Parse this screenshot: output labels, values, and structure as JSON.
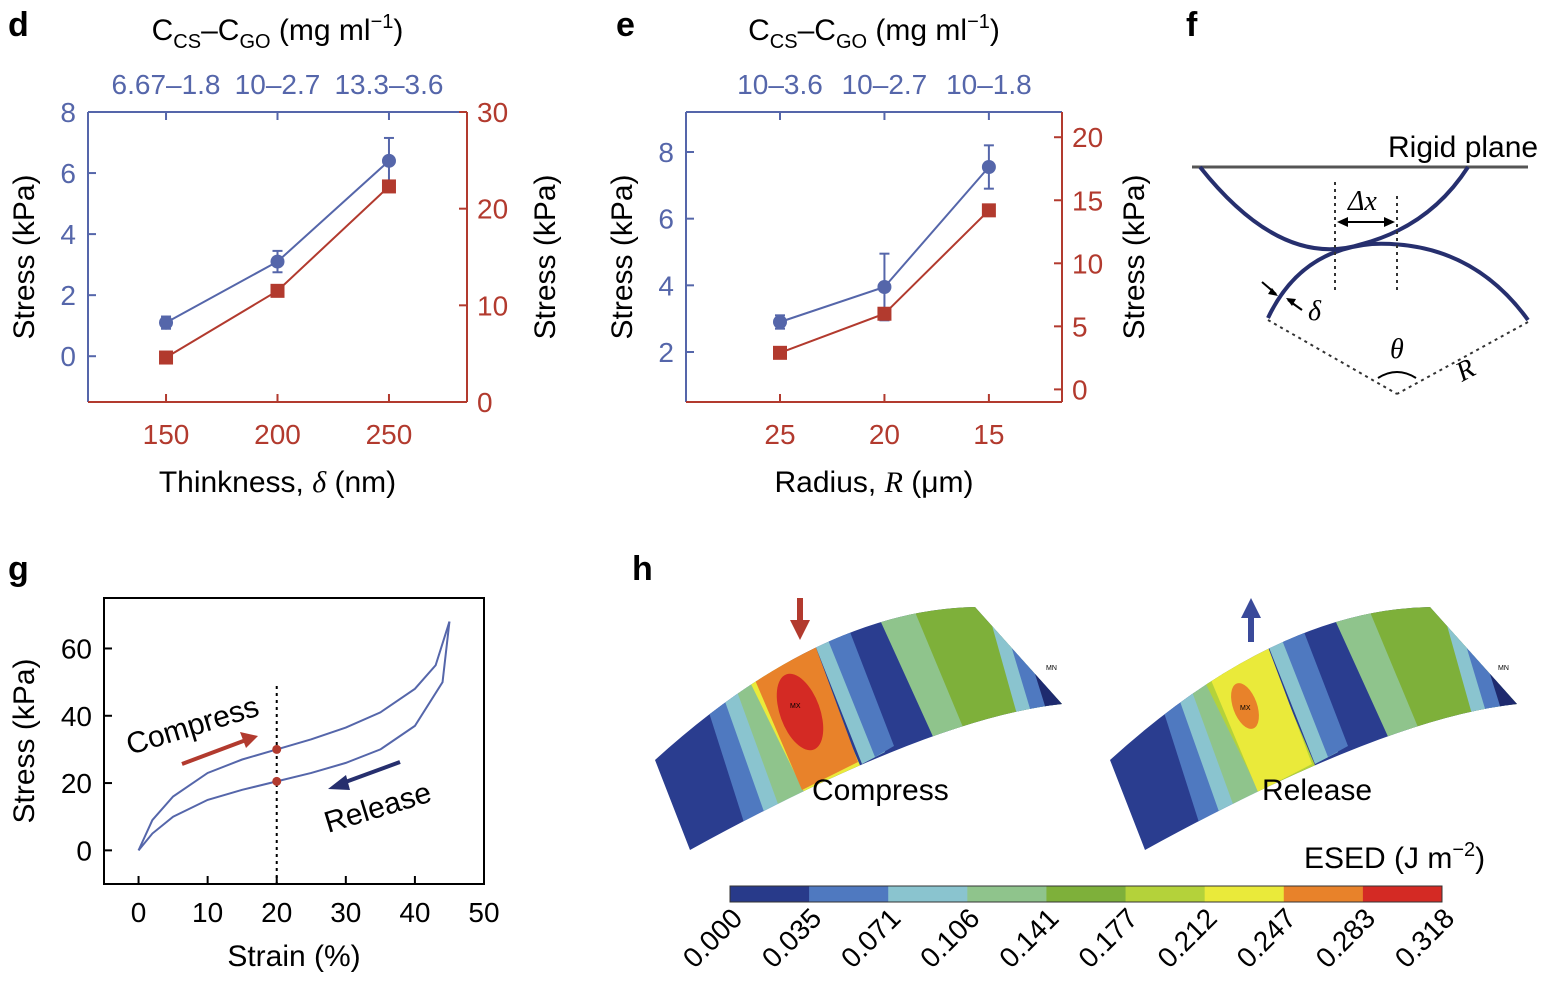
{
  "panels": {
    "d": "d",
    "e": "e",
    "f": "f",
    "g": "g",
    "h": "h"
  },
  "chart_data": [
    {
      "id": "d",
      "type": "line",
      "top_axis_title": "C_CS–C_GO (mg ml^-1)",
      "top_axis_title_parts": {
        "c1": "C",
        "s1": "CS",
        "dash": "–",
        "c2": "C",
        "s2": "GO",
        "unit": " (mg ml",
        "exp": "−1",
        "close": ")"
      },
      "top_ticks": [
        "6.67–1.8",
        "10–2.7",
        "13.3–3.6"
      ],
      "xlabel": "Thinkness, δ (nm)",
      "xlabel_parts": {
        "pre": "Thinkness, ",
        "sym": "δ",
        "post": " (nm)"
      },
      "x": [
        150,
        200,
        250
      ],
      "x_ticks": [
        "150",
        "200",
        "250"
      ],
      "xlim": [
        115,
        285
      ],
      "ylabel_left": "Stress (kPa)",
      "ylabel_right": "Stress (kPa)",
      "ylim_left": [
        -1.5,
        8
      ],
      "ylim_right": [
        0,
        30
      ],
      "y_ticks_left": [
        0,
        2,
        4,
        6,
        8
      ],
      "y_ticks_right": [
        0,
        10,
        20,
        30
      ],
      "series": [
        {
          "axis": "left",
          "color": "#5566aa",
          "marker": "circle",
          "values": [
            1.1,
            3.1,
            6.4
          ],
          "errors": [
            0.2,
            0.35,
            0.75
          ]
        },
        {
          "axis": "right",
          "color": "#b23a2e",
          "marker": "square",
          "values": [
            4.6,
            11.5,
            22.3
          ]
        }
      ]
    },
    {
      "id": "e",
      "type": "line",
      "top_axis_title": "C_CS–C_GO (mg ml^-1)",
      "top_axis_title_parts": {
        "c1": "C",
        "s1": "CS",
        "dash": "–",
        "c2": "C",
        "s2": "GO",
        "unit": " (mg ml",
        "exp": "−1",
        "close": ")"
      },
      "top_ticks": [
        "10–3.6",
        "10–2.7",
        "10–1.8"
      ],
      "xlabel": "Radius, R (μm)",
      "xlabel_parts": {
        "pre": "Radius, ",
        "sym": "R",
        "post": " (μm)"
      },
      "x": [
        25,
        20,
        15
      ],
      "x_ticks": [
        "25",
        "20",
        "15"
      ],
      "xlim": [
        29.5,
        11.5
      ],
      "ylabel_left": "Stress (kPa)",
      "ylabel_right": "Stress (kPa)",
      "ylim_left": [
        0.5,
        9.2
      ],
      "ylim_right": [
        -1,
        22
      ],
      "y_ticks_left": [
        2,
        4,
        6,
        8
      ],
      "y_ticks_right": [
        0,
        5,
        10,
        15,
        20
      ],
      "series": [
        {
          "axis": "left",
          "color": "#5566aa",
          "marker": "circle",
          "values": [
            2.9,
            3.95,
            7.55
          ],
          "errors": [
            0.2,
            1.0,
            0.65
          ]
        },
        {
          "axis": "right",
          "color": "#b23a2e",
          "marker": "square",
          "values": [
            2.9,
            6.0,
            14.2
          ]
        }
      ]
    },
    {
      "id": "g",
      "type": "line",
      "xlabel": "Strain (%)",
      "ylabel": "Stress (kPa)",
      "xlim": [
        -5,
        50
      ],
      "ylim": [
        -10,
        75
      ],
      "x_ticks": [
        0,
        10,
        20,
        30,
        40,
        50
      ],
      "y_ticks": [
        0,
        20,
        40,
        60
      ],
      "series": [
        {
          "name": "Compress",
          "x": [
            0,
            2,
            5,
            10,
            15,
            20,
            25,
            30,
            35,
            40,
            43,
            45
          ],
          "values": [
            0,
            9,
            16,
            23,
            27,
            30,
            33,
            36.5,
            41,
            48,
            55,
            68
          ]
        },
        {
          "name": "Release",
          "x": [
            0,
            2,
            5,
            10,
            15,
            20,
            25,
            30,
            35,
            40,
            44,
            45
          ],
          "values": [
            0,
            5,
            10,
            15,
            18,
            20.5,
            23,
            26,
            30,
            37,
            50,
            68
          ]
        }
      ],
      "markers": [
        {
          "x": 20,
          "y": 30
        },
        {
          "x": 20,
          "y": 20.5
        }
      ],
      "dotted_x": 20
    }
  ],
  "diagram_f": {
    "rigid_plane": "Rigid plane",
    "delta_x": "Δx",
    "delta": "δ",
    "theta": "θ",
    "radius": "R"
  },
  "panel_h": {
    "compress_label": "Compress",
    "release_label": "Release",
    "mx": "MX",
    "mn": "MN",
    "colorbar_title": "ESED (J m",
    "colorbar_exp": "−2",
    "colorbar_close": ")",
    "colorbar_ticks": [
      "0.000",
      "0.035",
      "0.071",
      "0.106",
      "0.141",
      "0.177",
      "0.212",
      "0.247",
      "0.283",
      "0.318"
    ],
    "colorbar_colors": [
      "#283a8a",
      "#4f79c0",
      "#8ac4cf",
      "#8fc48c",
      "#7eb03a",
      "#b4d23a",
      "#eaea3a",
      "#e8822a",
      "#d42a24"
    ],
    "compress_arrow_color": "#b23a2e",
    "release_arrow_color": "#3a4a9a"
  },
  "colors": {
    "blue": "#5566aa",
    "red": "#b23a2e",
    "navy": "#262f6e"
  }
}
